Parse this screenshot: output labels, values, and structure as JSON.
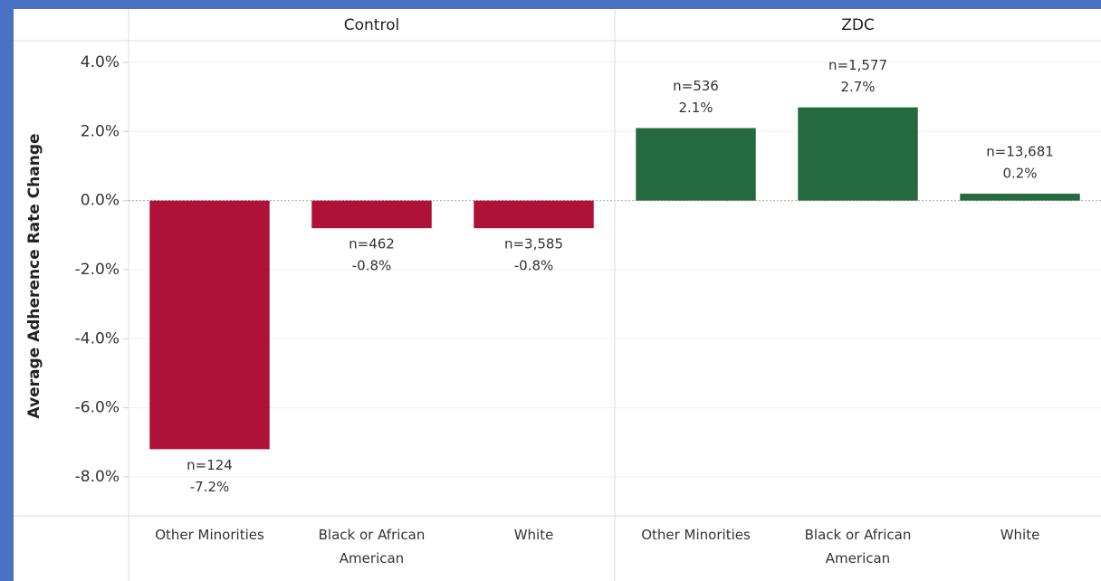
{
  "chart_data": {
    "type": "bar",
    "y_label": "Average Adherence Rate Change",
    "ylim": [
      -9.13,
      4.63
    ],
    "yticks": [
      {
        "value": 4,
        "label": "4.0%"
      },
      {
        "value": 2,
        "label": "2.0%"
      },
      {
        "value": 0,
        "label": "0.0%"
      },
      {
        "value": -2,
        "label": "-2.0%"
      },
      {
        "value": -4,
        "label": "-4.0%"
      },
      {
        "value": -6,
        "label": "-6.0%"
      },
      {
        "value": -8,
        "label": "-8.0%"
      }
    ],
    "grid": true,
    "panels": [
      {
        "title": "Control",
        "color": "#ae1238",
        "categories": [
          "Other Minorities",
          "Black or African American",
          "White"
        ],
        "values": [
          -7.2,
          -0.8,
          -0.8
        ],
        "value_labels": [
          "-7.2%",
          "-0.8%",
          "-0.8%"
        ],
        "n_labels": [
          "n=124",
          "n=462",
          "n=3,585"
        ]
      },
      {
        "title": "ZDC",
        "color": "#246a3e",
        "categories": [
          "Other Minorities",
          "Black or African American",
          "White"
        ],
        "values": [
          2.1,
          2.7,
          0.2
        ],
        "value_labels": [
          "2.1%",
          "2.7%",
          "0.2%"
        ],
        "n_labels": [
          "n=536",
          "n=1,577",
          "n=13,681"
        ]
      }
    ]
  }
}
